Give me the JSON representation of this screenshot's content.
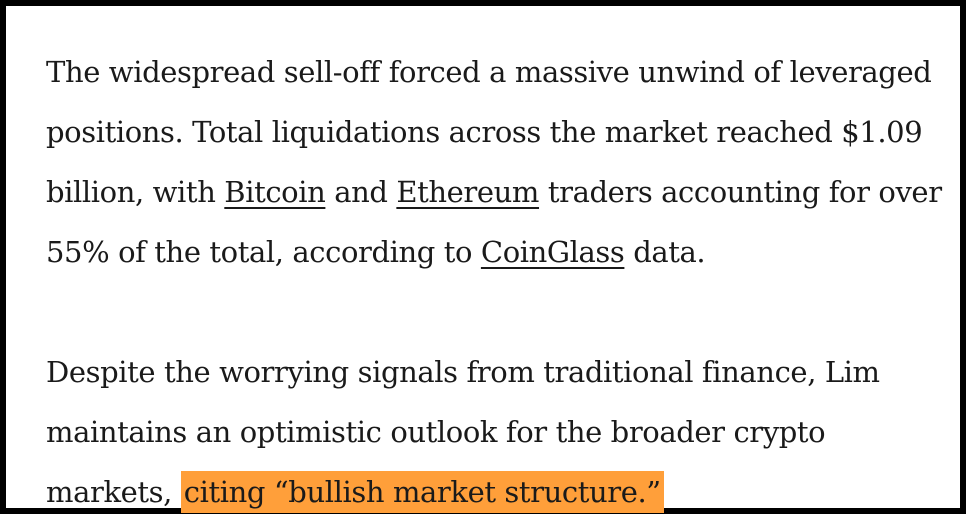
{
  "paragraph1": {
    "text_a": "The widespread sell-off forced a massive unwind of leveraged positions. Total liquidations across the market reached $1.09 billion, with ",
    "link_bitcoin": "Bitcoin",
    "text_b": " and ",
    "link_ethereum": "Ethereum",
    "text_c": " traders accounting for over 55% of the total, according to ",
    "link_coinglass": "CoinGlass",
    "text_d": " data."
  },
  "paragraph2": {
    "text_a": "Despite the worrying signals from traditional finance, Lim maintains an optimistic outlook for the broader crypto markets, ",
    "highlight": "citing “bullish market structure.”",
    "highlight_color": "#ff9f3a"
  }
}
